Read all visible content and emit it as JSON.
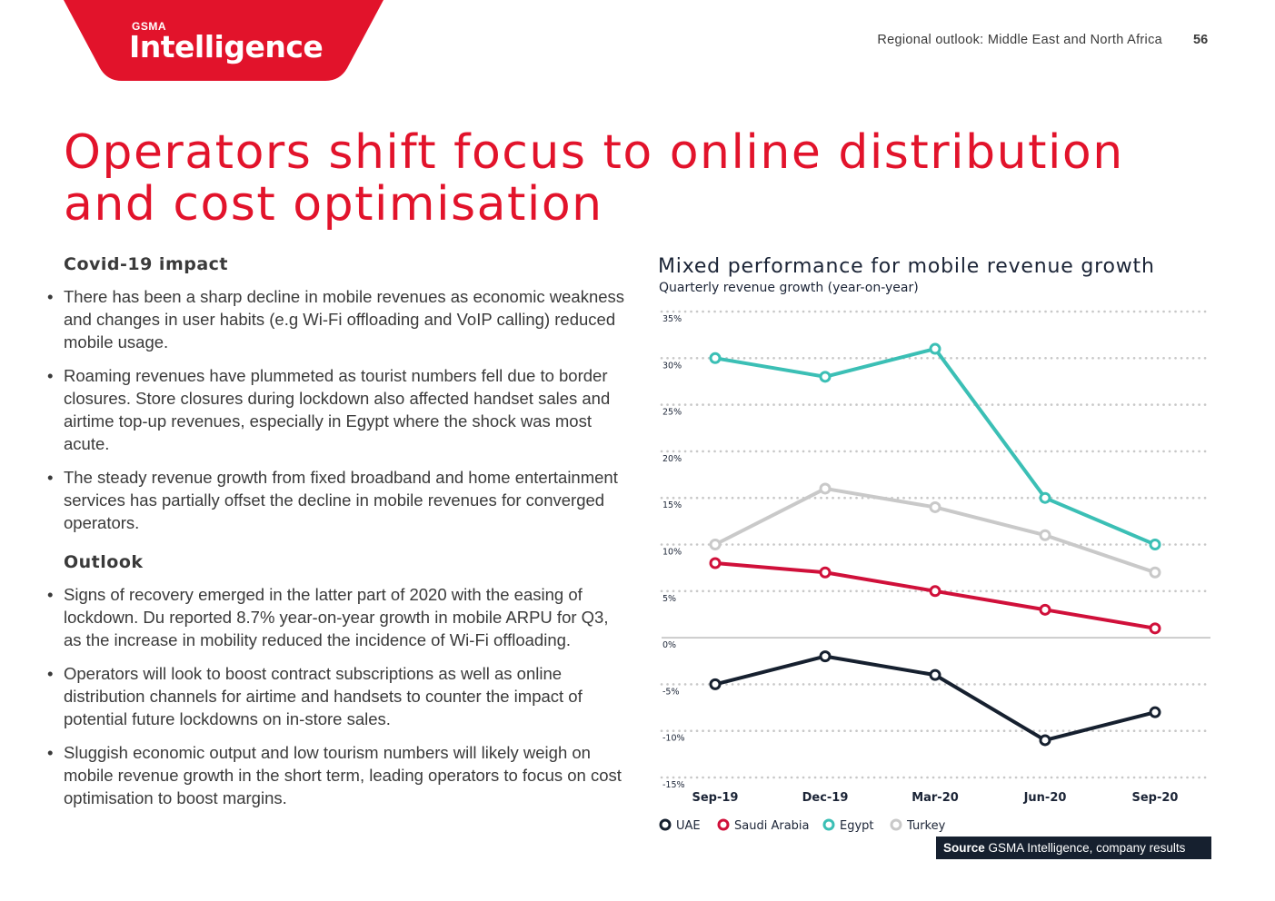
{
  "header": {
    "logo_small": "GSMA",
    "logo_big": "Intelligence",
    "running_head": "Regional outlook: Middle East and North Africa",
    "page_number": "56"
  },
  "page_title": "Operators shift focus to online distribution and cost optimisation",
  "sections": [
    {
      "heading": "Covid-19 impact",
      "bullets": [
        "There has been a sharp decline in mobile revenues as economic weakness and changes in user habits (e.g Wi-Fi offloading and VoIP calling) reduced mobile usage.",
        "Roaming revenues have plummeted as tourist numbers fell due to border closures. Store closures during lockdown also affected handset sales and airtime top-up revenues, especially in Egypt where the shock was most acute.",
        "The steady revenue growth from fixed broadband and home entertainment services has partially offset the decline in mobile revenues for converged operators."
      ]
    },
    {
      "heading": "Outlook",
      "bullets": [
        "Signs of recovery emerged in the latter part of 2020 with the easing of lockdown. Du reported 8.7% year-on-year growth in mobile ARPU for Q3, as the increase in mobility reduced the incidence of Wi-Fi offloading.",
        "Operators will look to boost contract subscriptions as well as online distribution channels for airtime and handsets to counter the impact of potential future lockdowns on in-store sales.",
        "Sluggish economic output and low tourism numbers will likely weigh on mobile revenue growth in the short term, leading operators to focus on cost optimisation to boost margins."
      ]
    }
  ],
  "chart_data": {
    "type": "line",
    "title": "Mixed performance for mobile revenue growth",
    "subtitle": "Quarterly revenue growth (year-on-year)",
    "categories": [
      "Sep-19",
      "Dec-19",
      "Mar-20",
      "Jun-20",
      "Sep-20"
    ],
    "ylim": [
      -15,
      35
    ],
    "yticks": [
      35,
      30,
      25,
      20,
      15,
      10,
      5,
      0,
      -5,
      -10,
      -15
    ],
    "ytick_labels": [
      "35%",
      "30%",
      "25%",
      "20%",
      "15%",
      "10%",
      "5%",
      "0%",
      "-5%",
      "-10%",
      "-15%"
    ],
    "grid": true,
    "legend_position": "bottom-left",
    "series": [
      {
        "name": "UAE",
        "color": "#16202f",
        "values": [
          -5,
          -2,
          -4,
          -11,
          -8
        ]
      },
      {
        "name": "Saudi Arabia",
        "color": "#d0103a",
        "values": [
          8,
          7,
          5,
          3,
          1
        ]
      },
      {
        "name": "Egypt",
        "color": "#3bbfb5",
        "values": [
          30,
          28,
          31,
          15,
          10
        ]
      },
      {
        "name": "Turkey",
        "color": "#c9c9c9",
        "values": [
          10,
          16,
          14,
          11,
          7
        ]
      }
    ],
    "source_label": "Source",
    "source_text": "GSMA Intelligence, company results"
  },
  "colors": {
    "brand_red": "#e2132b",
    "dark_navy": "#16202f",
    "grid_dots": "#c8c8c8"
  }
}
